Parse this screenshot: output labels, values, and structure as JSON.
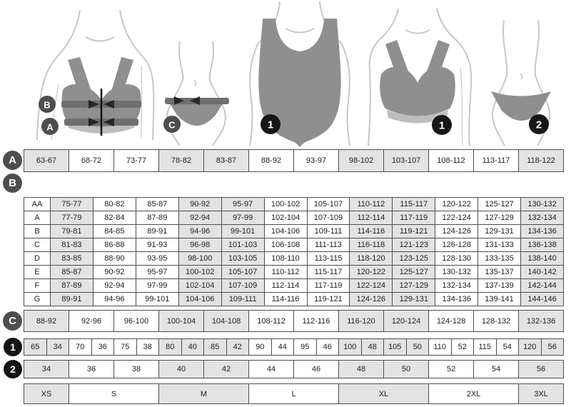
{
  "badges": {
    "a": "A",
    "b": "B",
    "c": "C",
    "one": "1",
    "two": "2"
  },
  "row_a": {
    "cells": [
      "63-67",
      "68-72",
      "73-77",
      "78-82",
      "83-87",
      "88-92",
      "93-97",
      "98-102",
      "103-107",
      "108-112",
      "113-117",
      "118-122"
    ]
  },
  "table_b": {
    "rows": [
      {
        "label": "AA",
        "cells": [
          "75-77",
          "80-82",
          "85-87",
          "90-92",
          "95-97",
          "100-102",
          "105-107",
          "110-112",
          "115-117",
          "120-122",
          "125-127",
          "130-132"
        ]
      },
      {
        "label": "A",
        "cells": [
          "77-79",
          "82-84",
          "87-89",
          "92-94",
          "97-99",
          "102-104",
          "107-109",
          "112-114",
          "117-119",
          "122-124",
          "127-129",
          "132-134"
        ]
      },
      {
        "label": "B",
        "cells": [
          "79-81",
          "84-85",
          "89-91",
          "94-96",
          "99-101",
          "104-106",
          "109-111",
          "114-116",
          "119-121",
          "124-126",
          "129-131",
          "134-136"
        ]
      },
      {
        "label": "C",
        "cells": [
          "81-83",
          "86-88",
          "91-93",
          "96-98",
          "101-103",
          "106-108",
          "111-113",
          "116-118",
          "121-123",
          "126-128",
          "131-133",
          "136-138"
        ]
      },
      {
        "label": "D",
        "cells": [
          "83-85",
          "88-90",
          "93-95",
          "98-100",
          "103-105",
          "108-110",
          "113-115",
          "118-120",
          "123-125",
          "128-130",
          "133-135",
          "138-140"
        ]
      },
      {
        "label": "E",
        "cells": [
          "85-87",
          "90-92",
          "95-97",
          "100-102",
          "105-107",
          "110-112",
          "115-117",
          "120-122",
          "125-127",
          "130-132",
          "135-137",
          "140-142"
        ]
      },
      {
        "label": "F",
        "cells": [
          "87-89",
          "92-94",
          "97-99",
          "102-104",
          "107-109",
          "112-114",
          "117-119",
          "122-124",
          "127-129",
          "132-134",
          "137-139",
          "142-144"
        ]
      },
      {
        "label": "G",
        "cells": [
          "89-91",
          "94-96",
          "99-101",
          "104-106",
          "109-111",
          "114-116",
          "119-121",
          "124-126",
          "129-131",
          "134-136",
          "139-141",
          "144-146"
        ]
      }
    ]
  },
  "row_c": {
    "cells": [
      "88-92",
      "92-96",
      "96-100",
      "100-104",
      "104-108",
      "108-112",
      "112-116",
      "116-120",
      "120-124",
      "124-128",
      "128-132",
      "132-136"
    ]
  },
  "row_1": {
    "cells": [
      "65",
      "34",
      "70",
      "36",
      "75",
      "38",
      "80",
      "40",
      "85",
      "42",
      "90",
      "44",
      "95",
      "46",
      "100",
      "48",
      "105",
      "50",
      "110",
      "52",
      "115",
      "54",
      "120",
      "56"
    ]
  },
  "row_2": {
    "cells": [
      "34",
      "36",
      "38",
      "40",
      "42",
      "44",
      "46",
      "48",
      "50",
      "52",
      "54",
      "56"
    ]
  },
  "sizes": {
    "cells": [
      "XS",
      "S",
      "M",
      "L",
      "XL",
      "2XL",
      "3XL"
    ]
  },
  "colors": {
    "cell_gray": "#e3e3e3",
    "cell_white": "#ffffff",
    "grid_border": "#4f4f4f",
    "badge_dark": "#4e4e4e",
    "badge_black": "#141414",
    "figure_gray": "#8f8f8f",
    "tape_gray": "#6f6f6f"
  }
}
